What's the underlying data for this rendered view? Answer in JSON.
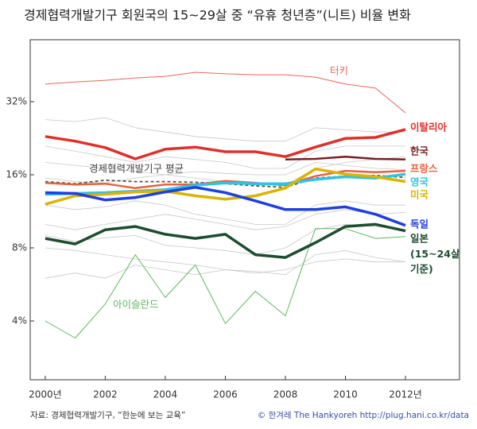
{
  "chart_data": {
    "type": "line",
    "title": "경제협력개발기구 회원국의 15~29살 중 “유휴 청년층”(니트) 비율 변화",
    "source": "자료: 경제협력개발기구, “한눈에 보는 교육”",
    "credit": "© 한겨레 The Hankyoreh http://plug.hani.co.kr/data",
    "log_y": true,
    "grid": false,
    "x": [
      2000,
      2001,
      2002,
      2003,
      2004,
      2005,
      2006,
      2007,
      2008,
      2009,
      2010,
      2011,
      2012
    ],
    "xlim": [
      1999.5,
      2013.8
    ],
    "xticks": [
      {
        "value": 2000,
        "label": "2000년"
      },
      2002,
      2004,
      2006,
      2008,
      2010,
      {
        "value": 2012,
        "label": "2012년"
      }
    ],
    "ylim": [
      2.29,
      57.6
    ],
    "yticks": [
      {
        "value": 4,
        "label": "4%"
      },
      {
        "value": 8,
        "label": "8%"
      },
      {
        "value": 16,
        "label": "16%"
      },
      {
        "value": 32,
        "label": "32%"
      }
    ],
    "series": [
      {
        "color": "#c8c8c8",
        "line_width": 0.8,
        "values": [
          27,
          26.5,
          27.5,
          25,
          24,
          23,
          22.5,
          22,
          22,
          25,
          24.5,
          24,
          24
        ]
      },
      {
        "color": "#c8c8c8",
        "line_width": 0.8,
        "values": [
          21,
          20,
          19,
          18,
          19,
          18.5,
          18,
          17,
          17,
          20,
          21,
          21,
          21
        ]
      },
      {
        "color": "#c8c8c8",
        "line_width": 0.8,
        "values": [
          18,
          17.5,
          17,
          16.5,
          16,
          15.5,
          15,
          14.5,
          14.5,
          17,
          18,
          18.5,
          19
        ]
      },
      {
        "color": "#c8c8c8",
        "line_width": 0.8,
        "values": [
          12,
          11.5,
          11.8,
          12.5,
          12,
          11,
          10.5,
          10,
          10,
          12,
          12.5,
          12,
          12
        ]
      },
      {
        "color": "#c8c8c8",
        "line_width": 0.8,
        "values": [
          10,
          9.5,
          10,
          10.5,
          11,
          10.5,
          10,
          9.5,
          9.8,
          11,
          11.5,
          11,
          11.2
        ]
      },
      {
        "color": "#c8c8c8",
        "line_width": 0.8,
        "values": [
          8,
          7.8,
          7.5,
          7.2,
          7,
          6.8,
          6.5,
          6.3,
          6.5,
          7,
          7.2,
          7,
          7
        ]
      },
      {
        "color": "#c8c8c8",
        "line_width": 0.8,
        "values": [
          6,
          6.3,
          6,
          6.8,
          6.5,
          6.2,
          6.5,
          6.4,
          6.2,
          7.5,
          7.8,
          7.3,
          7
        ]
      },
      {
        "color": "#c8c8c8",
        "line_width": 0.8,
        "values": [
          15.5,
          15,
          14.8,
          15.5,
          16,
          16.5,
          16.2,
          16,
          16,
          18,
          17.5,
          17,
          16.8
        ]
      },
      {
        "color": "#c8c8c8",
        "line_width": 0.8,
        "values": [
          9,
          8.5,
          8.8,
          9,
          8.2,
          8,
          7.8,
          7.5,
          8,
          9.5,
          10,
          9.8,
          9.5
        ]
      },
      {
        "name": "터키",
        "color": "#e8685a",
        "line_width": 1,
        "values": [
          37.8,
          38.6,
          39.2,
          40.1,
          40.7,
          42.3,
          41.7,
          41.3,
          41.3,
          40.4,
          37.8,
          36.4,
          28.8
        ]
      },
      {
        "name": "아이슬란드",
        "color": "#5cb85c",
        "line_width": 1,
        "values": [
          4.0,
          3.4,
          4.7,
          7.5,
          5.0,
          6.8,
          3.9,
          5.3,
          4.2,
          9.6,
          9.6,
          8.75,
          8.9
        ]
      },
      {
        "name": "경제협력개발기구 평균",
        "color": "#555555",
        "line_width": 1.8,
        "style": "dashed",
        "values": [
          15.0,
          14.7,
          15.2,
          15.0,
          15.0,
          14.9,
          14.7,
          14.4,
          14.2,
          15.5,
          15.8,
          15.9,
          15.6
        ]
      },
      {
        "name": "프랑스",
        "color": "#e8603c",
        "line_width": 2.5,
        "values": [
          14.8,
          14.6,
          14.7,
          14.1,
          14.6,
          14.6,
          15.1,
          14.8,
          14.5,
          15.8,
          16.6,
          16.4,
          16.6
        ]
      },
      {
        "name": "한국",
        "color": "#7a1f1f",
        "line_width": 2.5,
        "values": [
          null,
          null,
          null,
          null,
          null,
          null,
          null,
          null,
          18.5,
          18.6,
          19.0,
          18.6,
          18.5
        ]
      },
      {
        "name": "영국",
        "color": "#2ec4e6",
        "line_width": 3.5,
        "values": [
          13.3,
          13.4,
          13.5,
          13.7,
          13.9,
          14.5,
          14.8,
          14.7,
          14.7,
          15.3,
          15.7,
          15.5,
          16.1
        ]
      },
      {
        "name": "미국",
        "color": "#d9b400",
        "line_width": 3.5,
        "values": [
          12.1,
          13.1,
          13.3,
          13.6,
          13.7,
          13.1,
          12.7,
          13.1,
          14.1,
          16.9,
          16.1,
          15.7,
          15.0
        ]
      },
      {
        "name": "이탈리아",
        "color": "#e0302a",
        "line_width": 3.5,
        "values": [
          23.0,
          22.0,
          20.7,
          18.6,
          20.4,
          20.8,
          19.9,
          19.9,
          19.0,
          20.8,
          22.6,
          22.8,
          24.6
        ]
      },
      {
        "name": "독일",
        "color": "#1f3fe0",
        "line_width": 3.5,
        "values": [
          13.5,
          13.4,
          12.6,
          12.9,
          13.6,
          14.2,
          13.5,
          12.5,
          11.5,
          11.5,
          11.8,
          11.0,
          9.9
        ]
      },
      {
        "name": "일본",
        "note": "(15~24살 기준)",
        "color": "#1d4d30",
        "line_width": 3.5,
        "values": [
          8.75,
          8.3,
          9.5,
          9.8,
          9.1,
          8.75,
          9.1,
          7.5,
          7.3,
          8.4,
          9.8,
          10.0,
          9.4
        ]
      }
    ]
  }
}
